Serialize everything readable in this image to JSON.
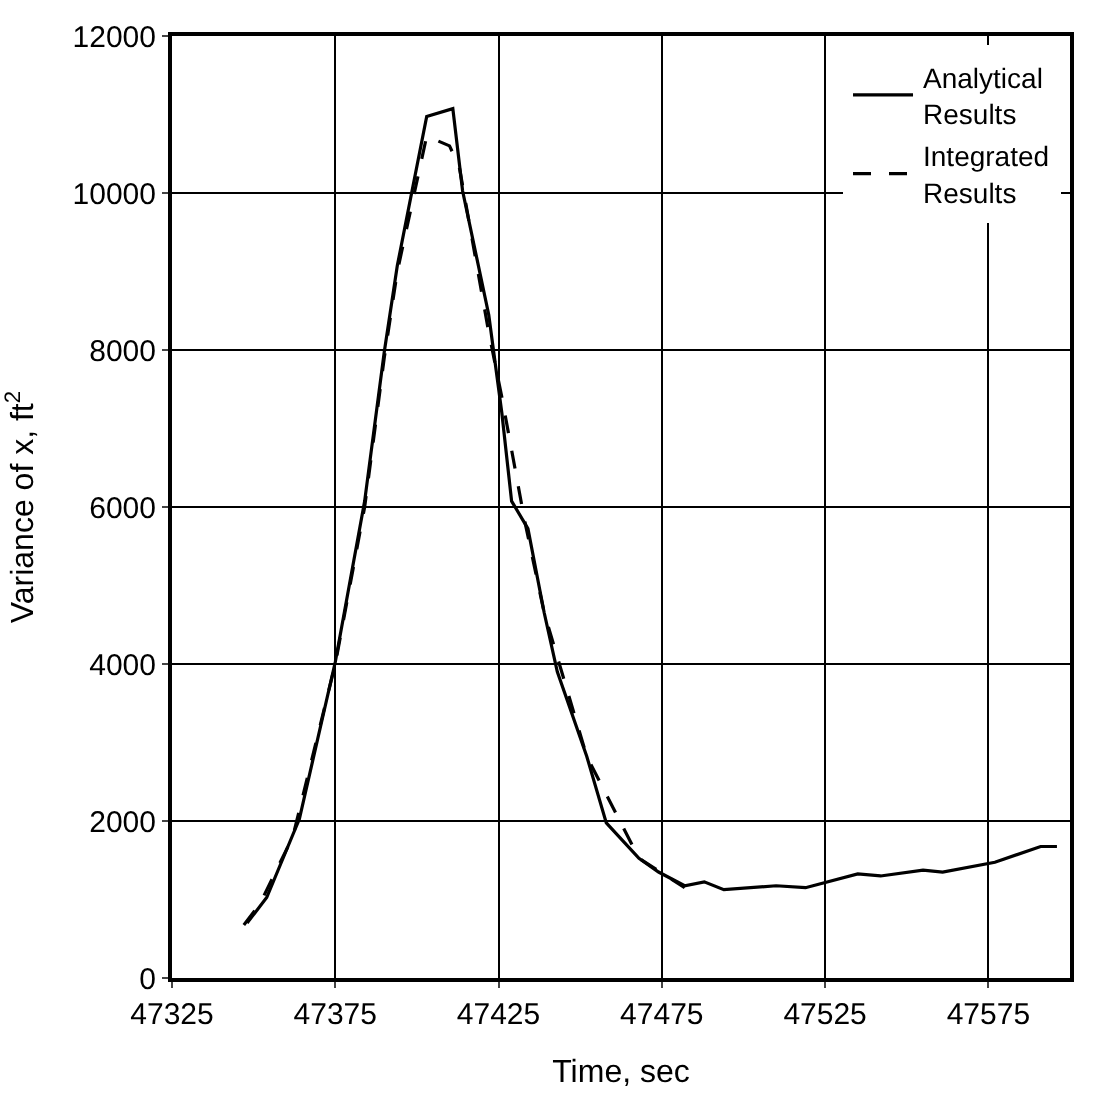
{
  "chart_data": {
    "type": "line",
    "xlabel": "Time, sec",
    "ylabel": "Variance of x, ft$^{2}$",
    "xlim": [
      47325,
      47600
    ],
    "xticks": [
      47325,
      47375,
      47425,
      47475,
      47525,
      47575
    ],
    "ylim": [
      0,
      12000
    ],
    "yticks": [
      0,
      2000,
      4000,
      6000,
      8000,
      10000,
      12000
    ],
    "grid": true,
    "legend": "top right",
    "marker": "none",
    "series": [
      {
        "name": "Analytical\nResults",
        "color": "#000000",
        "line_style": "solid",
        "x": [
          47348,
          47354,
          47362,
          47364,
          47375,
          47384,
          47390,
          47394,
          47403,
          47411,
          47414,
          47422,
          47426,
          47429,
          47434,
          47439,
          47443,
          47452,
          47458,
          47468,
          47474,
          47482,
          47488,
          47494,
          47510,
          47519,
          47535,
          47542,
          47555,
          47561,
          47577,
          47591,
          47596
        ],
        "values": [
          700,
          1025,
          1825,
          2025,
          4025,
          6075,
          7975,
          9075,
          10975,
          11075,
          10025,
          8450,
          7200,
          6075,
          5725,
          4650,
          3900,
          2825,
          1975,
          1525,
          1350,
          1175,
          1225,
          1125,
          1175,
          1150,
          1325,
          1300,
          1375,
          1350,
          1475,
          1675,
          1675
        ]
      },
      {
        "name": "Integrated\nResults",
        "color": "#000000",
        "line_style": "dashed",
        "x": [
          47347,
          47352,
          47362,
          47375,
          47384,
          47390,
          47394,
          47403,
          47410,
          47413,
          47422,
          47426,
          47433,
          47439,
          47452,
          47468,
          47482
        ],
        "values": [
          675,
          950,
          1800,
          4000,
          6000,
          7900,
          9000,
          10725,
          10600,
          10325,
          8225,
          7400,
          5825,
          4650,
          2825,
          1525,
          1150
        ]
      }
    ]
  }
}
